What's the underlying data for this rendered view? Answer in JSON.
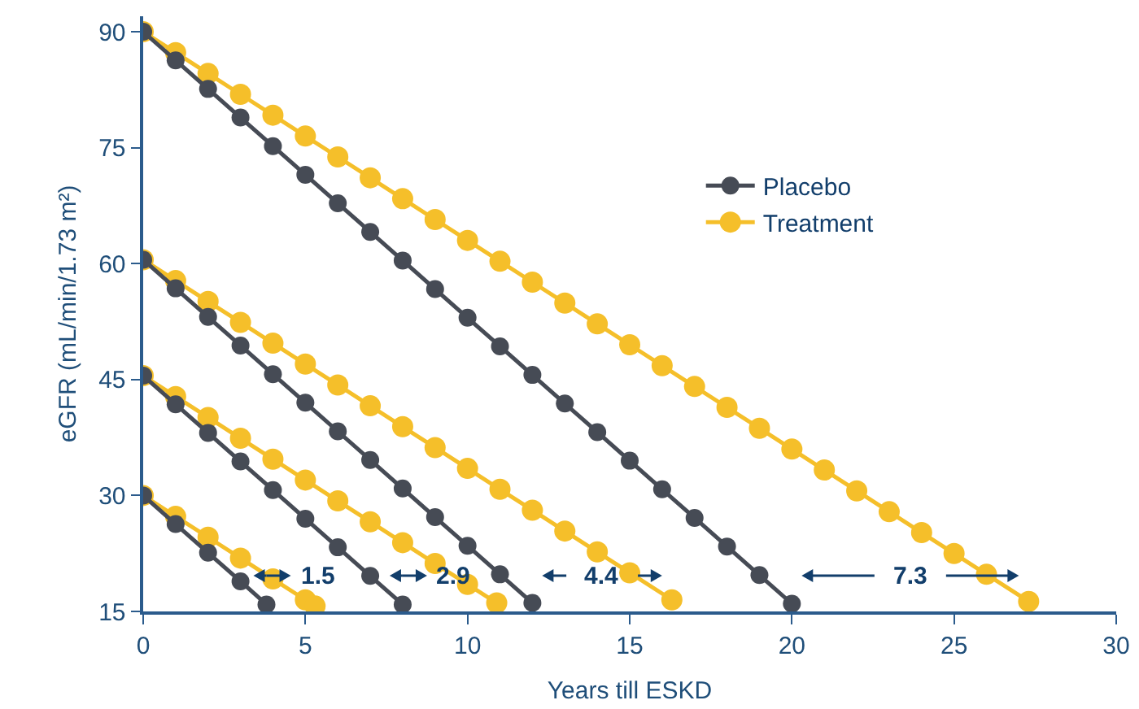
{
  "chart_data": {
    "type": "line",
    "xlabel": "Years till ESKD",
    "ylabel": "eGFR (mL/min/1.73 m²)",
    "xlim": [
      0,
      30
    ],
    "xticks": [
      0,
      5,
      10,
      15,
      20,
      25,
      30
    ],
    "ylim": [
      15,
      92
    ],
    "yticks": [
      15,
      30,
      45,
      60,
      75,
      90
    ],
    "grid": false,
    "legend": "right",
    "marker": "circle",
    "line_style": "solid",
    "series": [
      {
        "name": "Placebo",
        "color": "#464b55",
        "x": [
          0,
          1,
          2,
          3,
          4,
          5,
          6,
          7,
          8,
          9,
          10,
          11,
          12,
          13,
          14,
          15,
          16,
          17,
          18,
          19,
          20,
          null,
          0,
          1,
          2,
          3,
          4,
          5,
          6,
          7,
          8,
          9,
          10,
          11,
          12,
          null,
          0,
          1,
          2,
          3,
          4,
          5,
          6,
          7,
          8,
          null,
          0,
          1,
          2,
          3,
          3.8
        ],
        "values": [
          90,
          86.3,
          82.6,
          78.9,
          75.2,
          71.5,
          67.8,
          64.1,
          60.4,
          56.7,
          53,
          49.3,
          45.6,
          41.9,
          38.2,
          34.5,
          30.8,
          27.1,
          23.4,
          19.7,
          16,
          null,
          60.5,
          56.8,
          53.1,
          49.4,
          45.7,
          42,
          38.3,
          34.6,
          30.9,
          27.2,
          23.5,
          19.8,
          16.1,
          null,
          45.5,
          41.8,
          38.1,
          34.4,
          30.7,
          27,
          23.3,
          19.6,
          15.9,
          null,
          30,
          26.3,
          22.6,
          18.9,
          15.9
        ]
      },
      {
        "name": "Treatment",
        "color": "#f5bf2a",
        "x": [
          0,
          1,
          2,
          3,
          4,
          5,
          6,
          7,
          8,
          9,
          10,
          11,
          12,
          13,
          14,
          15,
          16,
          17,
          18,
          19,
          20,
          21,
          22,
          23,
          24,
          25,
          26,
          27.3,
          null,
          0,
          1,
          2,
          3,
          4,
          5,
          6,
          7,
          8,
          9,
          10,
          11,
          12,
          13,
          14,
          15,
          16.3,
          null,
          0,
          1,
          2,
          3,
          4,
          5,
          6,
          7,
          8,
          9,
          10,
          10.9,
          null,
          0,
          1,
          2,
          3,
          4,
          5,
          5.3
        ],
        "values": [
          90,
          87.3,
          84.6,
          81.9,
          79.2,
          76.5,
          73.8,
          71.1,
          68.4,
          65.7,
          63,
          60.3,
          57.6,
          54.9,
          52.2,
          49.5,
          46.8,
          44.1,
          41.4,
          38.7,
          36,
          33.3,
          30.6,
          27.9,
          25.2,
          22.5,
          19.8,
          16.3,
          null,
          60.5,
          57.8,
          55.1,
          52.4,
          49.7,
          47,
          44.3,
          41.6,
          38.9,
          36.2,
          33.5,
          30.8,
          28.1,
          25.4,
          22.7,
          20,
          16.5,
          null,
          45.5,
          42.8,
          40.1,
          37.4,
          34.7,
          32,
          29.3,
          26.6,
          23.9,
          21.2,
          18.5,
          16.1,
          null,
          30,
          27.3,
          24.6,
          21.9,
          19.2,
          16.5,
          15.7
        ]
      }
    ],
    "annotations": [
      "1.5",
      "2.9",
      "4.4",
      "7.3"
    ]
  }
}
